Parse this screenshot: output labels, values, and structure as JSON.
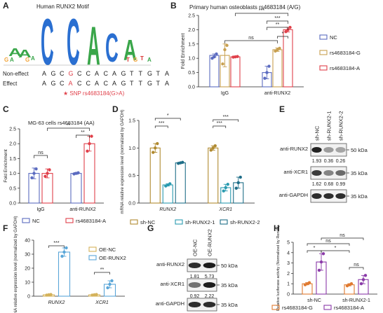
{
  "panel_labels": [
    "A",
    "B",
    "C",
    "D",
    "E",
    "F",
    "G",
    "H"
  ],
  "colors": {
    "nc": "#5b6bc0",
    "g": "#c8a050",
    "a": "#e0404a",
    "shnc": "#b08a30",
    "sh1": "#2a9bb0",
    "sh2": "#1f6e88",
    "oenc": "#d4b25a",
    "oerunx": "#5aa6d8",
    "rs_g": "#e07a30",
    "rs_a": "#8a3aa8",
    "ink": "#222222",
    "snp": "#e0404a"
  },
  "panelA": {
    "title": "Human RUNX2 Motif",
    "row_noneffect_label": "Non-effect",
    "row_effect_label": "Effect",
    "seq_noneffect": [
      "A",
      "G",
      "C",
      "G",
      "C",
      "C",
      "A",
      "C",
      "A",
      "G",
      "T",
      "T",
      "G",
      "T",
      "A"
    ],
    "seq_effect": [
      "A",
      "G",
      "C",
      "A",
      "C",
      "C",
      "A",
      "C",
      "A",
      "G",
      "T",
      "T",
      "G",
      "T",
      "A"
    ],
    "snp_index": 3,
    "snp_note": "★ SNP rs4683184(G>A)",
    "logo_letters": [
      "A",
      "A",
      "C",
      "C",
      "A",
      "C",
      "A"
    ]
  },
  "chart_data": [
    {
      "id": "B",
      "type": "bar",
      "title": "Primary human osteoblasts  rs4683184 (A/G)",
      "ylabel": "Fold Enrichment",
      "ylim": [
        0,
        2.5
      ],
      "yticks": [
        0,
        0.5,
        1.0,
        1.5,
        2.0,
        2.5
      ],
      "categories": [
        "IgG",
        "anti-RUNX2"
      ],
      "series": [
        {
          "name": "NC",
          "values": [
            1.1,
            0.5
          ],
          "errors": [
            0.05,
            0.22
          ],
          "points": [
            [
              1.0,
              1.05,
              1.15
            ],
            [
              0.3,
              0.5,
              0.72
            ]
          ]
        },
        {
          "name": "rs4683184-G",
          "values": [
            1.1,
            1.3
          ],
          "errors": [
            0.4,
            0.06
          ],
          "points": [
            [
              0.8,
              1.3,
              1.45
            ],
            [
              1.25,
              1.3,
              1.35
            ]
          ]
        },
        {
          "name": "rs4683184-A",
          "values": [
            1.05,
            2.0
          ],
          "errors": [
            0.02,
            0.08
          ],
          "points": [
            [
              1.04,
              1.05,
              1.06
            ],
            [
              1.93,
              2.0,
              2.08
            ]
          ]
        }
      ],
      "significance": [
        "ns",
        "*",
        "**",
        "***",
        "***"
      ],
      "legend_position": "right"
    },
    {
      "id": "C",
      "type": "bar",
      "title": "MG-63 cells  rs4683184 (AA)",
      "ylabel": "Fold Enrichment",
      "ylim": [
        0,
        2.5
      ],
      "yticks": [
        0,
        0.5,
        1.0,
        1.5,
        2.0,
        2.5
      ],
      "categories": [
        "IgG",
        "anti-RUNX2"
      ],
      "series": [
        {
          "name": "NC",
          "values": [
            1.0,
            1.0
          ],
          "errors": [
            0.18,
            0.03
          ],
          "points": [
            [
              0.85,
              1.0,
              1.15
            ],
            [
              0.98,
              1.0,
              1.02
            ]
          ]
        },
        {
          "name": "rs4683184-A",
          "values": [
            1.0,
            2.0
          ],
          "errors": [
            0.15,
            0.25
          ],
          "points": [
            [
              0.9,
              1.0,
              1.12
            ],
            [
              1.75,
              2.0,
              2.25
            ]
          ]
        }
      ],
      "significance": [
        "ns",
        "**",
        "**"
      ],
      "legend_position": "bottom"
    },
    {
      "id": "D",
      "type": "bar",
      "ylabel": "mRNA relative expression level (normalized by GAPDH)",
      "ylim": [
        0,
        1.5
      ],
      "yticks": [
        0,
        0.5,
        1.0,
        1.5
      ],
      "categories": [
        "RUNX2",
        "XCR1"
      ],
      "series": [
        {
          "name": "sh-NC",
          "values": [
            1.0,
            1.0
          ],
          "errors": [
            0.08,
            0.04
          ],
          "points": [
            [
              0.92,
              1.0,
              1.08
            ],
            [
              0.96,
              1.0,
              1.04
            ]
          ]
        },
        {
          "name": "sh-RUNX2-1",
          "values": [
            0.33,
            0.28
          ],
          "errors": [
            0.02,
            0.06
          ],
          "points": [
            [
              0.31,
              0.33,
              0.35
            ],
            [
              0.22,
              0.28,
              0.34
            ]
          ]
        },
        {
          "name": "sh-RUNX2-2",
          "values": [
            0.73,
            0.37
          ],
          "errors": [
            0.01,
            0.1
          ],
          "points": [
            [
              0.72,
              0.73,
              0.74
            ],
            [
              0.27,
              0.37,
              0.47
            ]
          ]
        }
      ],
      "significance": [
        "***",
        "*",
        "***",
        "***"
      ],
      "legend_position": "bottom"
    },
    {
      "id": "F",
      "type": "bar",
      "ylabel": "mRNA relative expression level (normalized by GAPDH)",
      "ylim": [
        0,
        40
      ],
      "yticks": [
        0,
        10,
        20,
        30,
        40
      ],
      "categories": [
        "RUNX2",
        "XCR1"
      ],
      "series": [
        {
          "name": "OE-NC",
          "values": [
            1.0,
            1.0
          ],
          "errors": [
            0.3,
            0.3
          ],
          "points": [
            [
              0.8,
              1.0,
              1.2
            ],
            [
              0.8,
              1.0,
              1.2
            ]
          ]
        },
        {
          "name": "OE-RUNX2",
          "values": [
            31.5,
            8.5
          ],
          "errors": [
            3.0,
            2.5
          ],
          "points": [
            [
              28.5,
              31.5,
              34.5
            ],
            [
              6.0,
              8.5,
              11.0
            ]
          ]
        }
      ],
      "significance": [
        "***",
        "**"
      ],
      "legend_position": "top-right"
    },
    {
      "id": "H",
      "type": "bar",
      "ylabel": "Relative luciferase activity (Normalized by Renilla)",
      "ylim": [
        0,
        5
      ],
      "yticks": [
        0,
        1,
        2,
        3,
        4,
        5
      ],
      "categories": [
        "sh-NC",
        "sh-RUNX2-1"
      ],
      "series": [
        {
          "name": "rs4683184-G",
          "values": [
            1.0,
            0.9
          ],
          "errors": [
            0.1,
            0.1
          ],
          "points": [
            [
              0.9,
              1.0,
              1.1
            ],
            [
              0.8,
              0.9,
              1.0
            ]
          ]
        },
        {
          "name": "rs4683184-A",
          "values": [
            3.1,
            1.4
          ],
          "errors": [
            0.8,
            0.4
          ],
          "points": [
            [
              2.3,
              3.1,
              3.9
            ],
            [
              1.0,
              1.4,
              1.8
            ]
          ]
        }
      ],
      "significance": [
        "ns",
        "*",
        "*",
        "ns",
        "ns"
      ],
      "legend_position": "bottom"
    }
  ],
  "blotE": {
    "lanes": [
      "sh-NC",
      "sh-RUNX2-1",
      "sh-RUNX2-2"
    ],
    "rows": [
      {
        "label": "anti-RUNX2",
        "kda": "50 kDa",
        "values": [
          "1.93",
          "0.36",
          "0.26"
        ]
      },
      {
        "label": "anti-XCR1",
        "kda": "35 kDa",
        "values": [
          "1.62",
          "0.68",
          "0.99"
        ]
      },
      {
        "label": "anti-GAPDH",
        "kda": "35 kDa",
        "values": []
      }
    ]
  },
  "blotG": {
    "lanes": [
      "OE-NC",
      "OE-RUNX2"
    ],
    "rows": [
      {
        "label": "anti-RUNX2",
        "kda": "50 kDa",
        "values": [
          "1.81",
          "5.73"
        ]
      },
      {
        "label": "anti-XCR1",
        "kda": "35 kDa",
        "values": [
          "0.92",
          "2.22"
        ]
      },
      {
        "label": "anti-GAPDH",
        "kda": "35 kDa",
        "values": []
      }
    ]
  }
}
